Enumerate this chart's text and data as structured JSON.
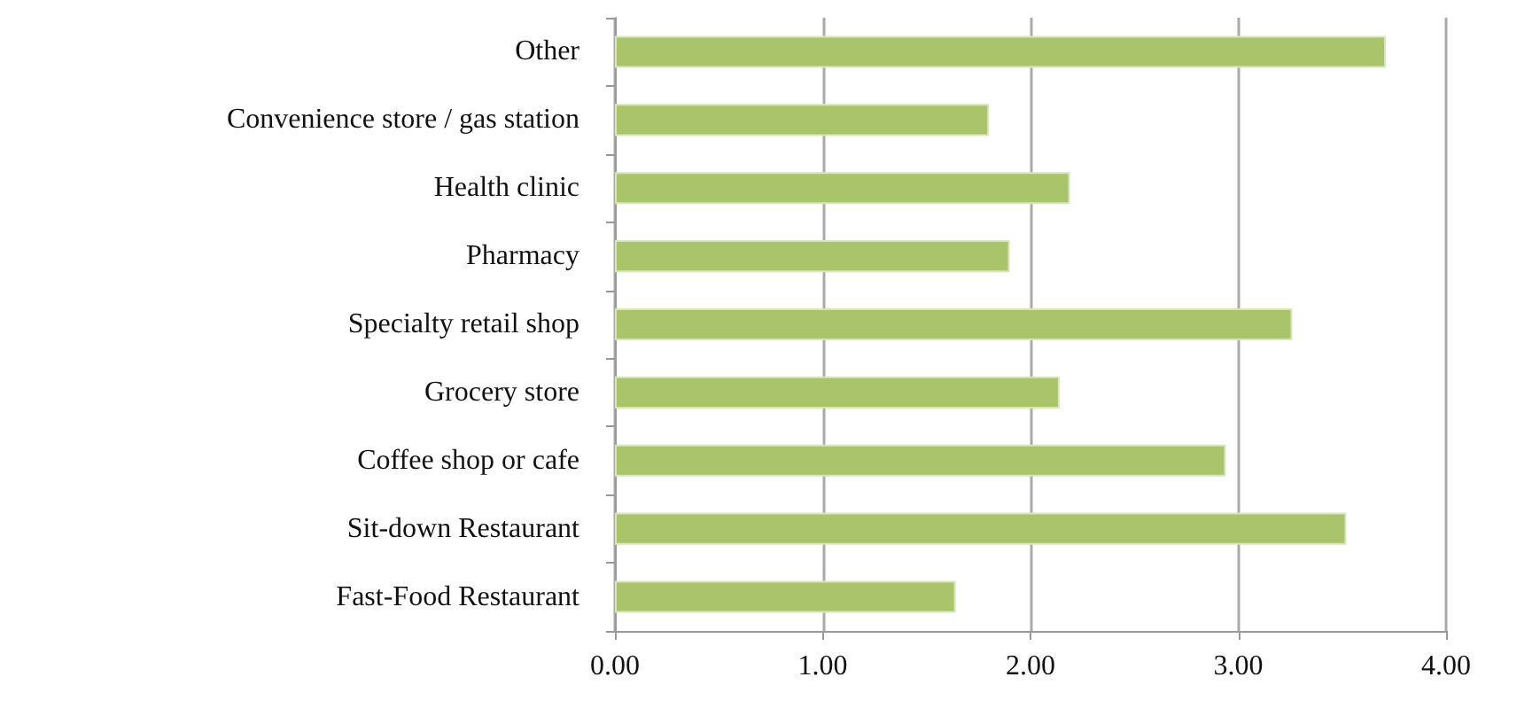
{
  "chart_data": {
    "type": "bar",
    "orientation": "horizontal",
    "categories": [
      "Other",
      "Convenience store / gas station",
      "Health clinic",
      "Pharmacy",
      "Specialty retail shop",
      "Grocery store",
      "Coffee shop or cafe",
      "Sit-down Restaurant",
      "Fast-Food Restaurant"
    ],
    "values": [
      3.71,
      1.8,
      2.19,
      1.9,
      3.26,
      2.14,
      2.94,
      3.52,
      1.64
    ],
    "color": "#aac46c",
    "xlim": [
      0,
      4
    ],
    "xticks": [
      {
        "value": 0,
        "label": "0.00"
      },
      {
        "value": 1,
        "label": "1.00"
      },
      {
        "value": 2,
        "label": "2.00"
      },
      {
        "value": 3,
        "label": "3.00"
      },
      {
        "value": 4,
        "label": "4.00"
      }
    ],
    "grid": "x"
  }
}
